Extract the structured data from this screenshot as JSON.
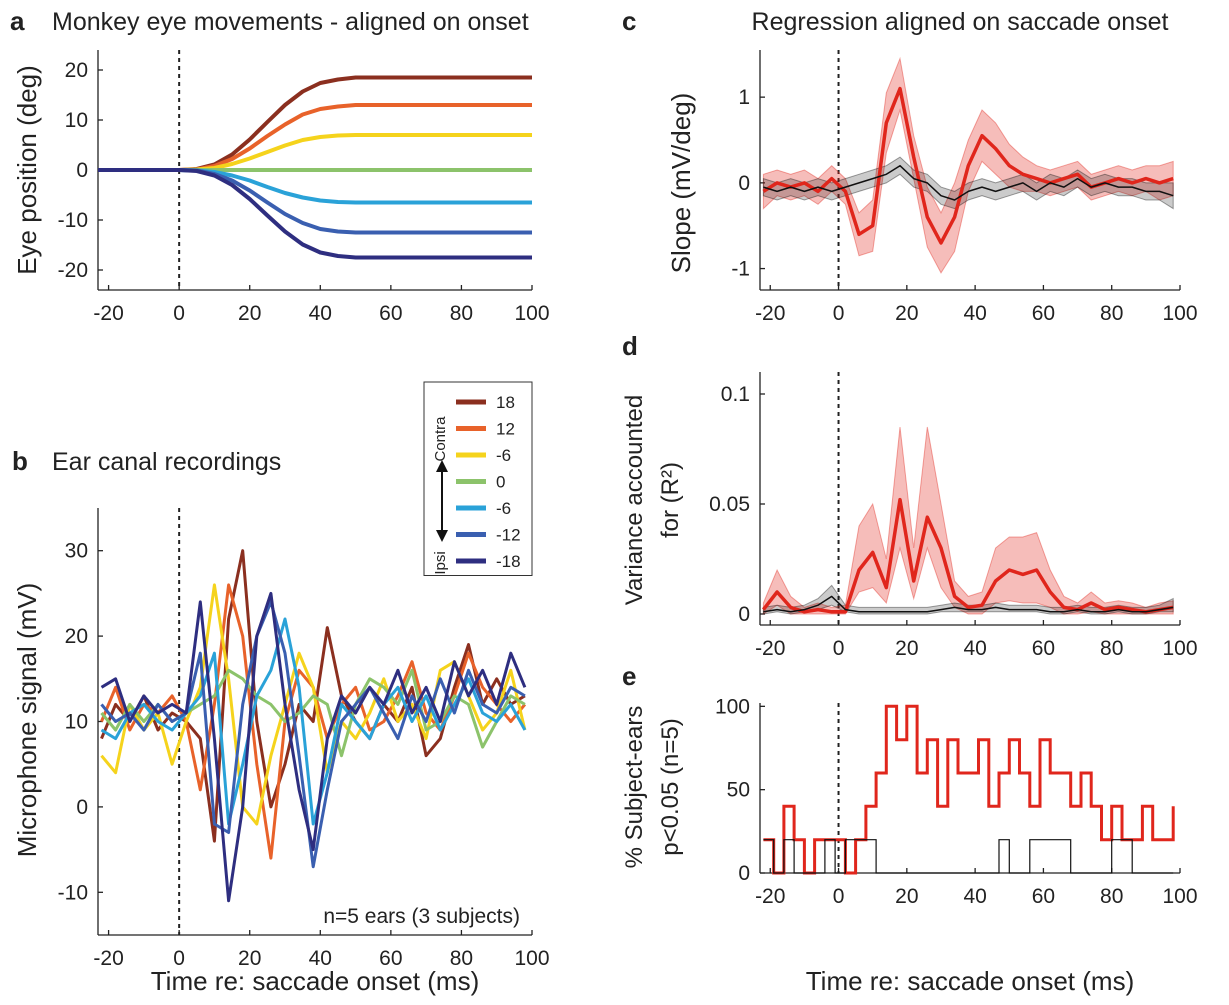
{
  "chart_data": [
    {
      "type": "line",
      "panel": "a",
      "title": "Monkey eye movements - aligned on onset",
      "ylabel": "Eye position (deg)",
      "x": [
        -23,
        0,
        5,
        10,
        15,
        20,
        25,
        30,
        35,
        40,
        45,
        50,
        55,
        60,
        80,
        100
      ],
      "series": [
        {
          "color": "#8b2f1f",
          "values": [
            0,
            0,
            0.2,
            1.1,
            3.1,
            6.1,
            9.6,
            13,
            15.7,
            17.4,
            18.1,
            18.5,
            18.5,
            18.5,
            18.5,
            18.5
          ]
        },
        {
          "color": "#e8622a",
          "values": [
            0,
            0,
            0.1,
            0.8,
            2.2,
            4.3,
            6.8,
            9.1,
            11.1,
            12.2,
            12.7,
            13,
            13,
            13,
            13,
            13
          ]
        },
        {
          "color": "#f5d31c",
          "values": [
            0,
            0,
            0.1,
            0.4,
            1.2,
            2.3,
            3.6,
            4.9,
            6,
            6.6,
            6.9,
            7,
            7,
            7,
            7,
            7
          ]
        },
        {
          "color": "#8cc36b",
          "values": [
            0,
            0,
            0,
            0,
            0,
            0,
            0,
            0,
            0,
            0,
            0,
            0,
            0,
            0,
            0,
            0
          ]
        },
        {
          "color": "#2aa2d8",
          "values": [
            0,
            0,
            -0.1,
            -0.4,
            -1.1,
            -2.1,
            -3.4,
            -4.6,
            -5.5,
            -6.1,
            -6.4,
            -6.5,
            -6.5,
            -6.5,
            -6.5,
            -6.5
          ]
        },
        {
          "color": "#3a5fb0",
          "values": [
            0,
            0,
            -0.1,
            -0.8,
            -2.1,
            -4.1,
            -6.5,
            -8.8,
            -10.6,
            -11.8,
            -12.3,
            -12.5,
            -12.5,
            -12.5,
            -12.5,
            -12.5
          ]
        },
        {
          "color": "#2e2e80",
          "values": [
            0,
            0,
            -0.2,
            -1.1,
            -3,
            -5.8,
            -9.1,
            -12.3,
            -14.9,
            -16.5,
            -17.2,
            -17.5,
            -17.5,
            -17.5,
            -17.5,
            -17.5
          ]
        }
      ],
      "xlim": [
        -23,
        100
      ],
      "xticks": [
        -20,
        0,
        20,
        40,
        60,
        80,
        100
      ],
      "ylim": [
        -24,
        24
      ],
      "yticks": [
        -20,
        -10,
        0,
        10,
        20
      ],
      "vline": 0
    },
    {
      "type": "line",
      "panel": "b",
      "title": "Ear canal recordings",
      "ylabel": "Microphone signal (mV)",
      "xlabel": "Time re: saccade onset (ms)",
      "annotation": "n=5 ears (3 subjects)",
      "legend": "upper right",
      "legend_directions": [
        "Contra",
        "Ipsi"
      ],
      "x": [
        -22,
        -18,
        -14,
        -10,
        -6,
        -2,
        2,
        6,
        10,
        14,
        18,
        22,
        26,
        30,
        34,
        38,
        42,
        46,
        50,
        54,
        58,
        62,
        66,
        70,
        74,
        78,
        82,
        86,
        90,
        94,
        98
      ],
      "series": [
        {
          "name": "18",
          "color": "#8b2f1f",
          "values": [
            8,
            12,
            10,
            13,
            9,
            11,
            10,
            8,
            -4,
            22,
            30,
            10,
            0,
            5,
            12,
            10,
            21,
            13,
            10,
            8,
            12,
            10,
            14,
            6,
            8,
            14,
            19,
            12,
            15,
            12,
            13
          ]
        },
        {
          "name": "12",
          "color": "#e8622a",
          "values": [
            10,
            14,
            9,
            12,
            11,
            13,
            10,
            2,
            12,
            26,
            20,
            5,
            -6,
            10,
            16,
            14,
            8,
            12,
            14,
            9,
            10,
            13,
            17,
            11,
            9,
            13,
            18,
            14,
            12,
            10,
            12
          ]
        },
        {
          "name": "-6",
          "color": "#f5d31c",
          "values": [
            6,
            4,
            12,
            9,
            11,
            5,
            10,
            14,
            26,
            15,
            0,
            -2,
            6,
            12,
            18,
            14,
            4,
            10,
            8,
            11,
            15,
            10,
            12,
            8,
            16,
            17,
            13,
            9,
            11,
            16,
            9
          ]
        },
        {
          "name": "0",
          "color": "#8cc36b",
          "values": [
            11,
            9,
            12,
            10,
            12,
            10,
            11,
            12,
            13,
            16,
            15,
            13,
            12,
            10,
            11,
            13,
            12,
            6,
            12,
            15,
            14,
            12,
            16,
            9,
            10,
            13,
            12,
            7,
            10,
            13,
            12
          ]
        },
        {
          "name": "-6",
          "color": "#2aa2d8",
          "values": [
            9,
            8,
            11,
            12,
            10,
            9,
            11,
            13,
            18,
            -2,
            5,
            13,
            16,
            22,
            14,
            -2,
            4,
            12,
            10,
            8,
            12,
            14,
            10,
            13,
            9,
            12,
            15,
            11,
            10,
            12,
            9
          ]
        },
        {
          "name": "-12",
          "color": "#3a5fb0",
          "values": [
            12,
            10,
            11,
            9,
            12,
            10,
            11,
            18,
            -2,
            -3,
            12,
            20,
            24,
            18,
            6,
            -7,
            2,
            10,
            12,
            14,
            11,
            8,
            13,
            10,
            15,
            11,
            16,
            12,
            11,
            14,
            13
          ]
        },
        {
          "name": "-18",
          "color": "#2e2e80",
          "values": [
            14,
            15,
            10,
            13,
            11,
            12,
            11,
            24,
            8,
            -11,
            0,
            20,
            25,
            12,
            2,
            -5,
            8,
            13,
            11,
            14,
            12,
            16,
            11,
            14,
            10,
            17,
            13,
            16,
            12,
            18,
            14
          ]
        }
      ],
      "xlim": [
        -23,
        100
      ],
      "xticks": [
        -20,
        0,
        20,
        40,
        60,
        80,
        100
      ],
      "ylim": [
        -15,
        35
      ],
      "yticks": [
        -10,
        0,
        10,
        20,
        30
      ],
      "vline": 0
    },
    {
      "type": "line",
      "panel": "c",
      "title": "Regression aligned on saccade onset",
      "ylabel": "Slope (mV/deg)",
      "x": [
        -22,
        -18,
        -14,
        -10,
        -6,
        -2,
        2,
        6,
        10,
        14,
        18,
        22,
        26,
        30,
        34,
        38,
        42,
        46,
        50,
        54,
        58,
        62,
        66,
        70,
        74,
        78,
        82,
        86,
        90,
        94,
        98
      ],
      "series": [
        {
          "color": "#e0261c",
          "values": [
            -0.1,
            0,
            -0.05,
            0,
            -0.1,
            0.05,
            -0.1,
            -0.6,
            -0.5,
            0.7,
            1.1,
            0.3,
            -0.4,
            -0.7,
            -0.4,
            0.2,
            0.55,
            0.4,
            0.2,
            0.1,
            0.05,
            0,
            0.05,
            0.1,
            -0.05,
            0,
            0.05,
            0,
            0.05,
            0,
            0.05
          ],
          "lower": [
            -0.3,
            -0.15,
            -0.2,
            -0.15,
            -0.25,
            -0.1,
            -0.25,
            -0.85,
            -0.8,
            0.35,
            0.85,
            0.05,
            -0.75,
            -1.05,
            -0.8,
            -0.1,
            0.25,
            0.1,
            -0.05,
            -0.1,
            -0.1,
            -0.15,
            -0.1,
            -0.05,
            -0.2,
            -0.15,
            -0.1,
            -0.15,
            -0.1,
            -0.2,
            -0.15
          ],
          "upper": [
            0.1,
            0.15,
            0.1,
            0.15,
            0.05,
            0.2,
            0.05,
            -0.35,
            -0.2,
            1.05,
            1.45,
            0.55,
            -0.05,
            -0.35,
            0,
            0.5,
            0.85,
            0.7,
            0.45,
            0.3,
            0.2,
            0.15,
            0.2,
            0.25,
            0.1,
            0.15,
            0.2,
            0.15,
            0.2,
            0.2,
            0.25
          ]
        },
        {
          "color": "#111111",
          "values": [
            -0.05,
            -0.1,
            -0.05,
            -0.1,
            -0.05,
            -0.1,
            -0.05,
            0,
            0.05,
            0.1,
            0.2,
            0.05,
            0,
            -0.15,
            -0.2,
            -0.1,
            -0.05,
            -0.1,
            -0.05,
            0,
            -0.1,
            0,
            -0.05,
            0.05,
            -0.05,
            0,
            -0.05,
            -0.05,
            -0.1,
            -0.1,
            -0.15
          ],
          "lower": [
            -0.15,
            -0.2,
            -0.15,
            -0.2,
            -0.15,
            -0.2,
            -0.15,
            -0.1,
            -0.05,
            0,
            0.1,
            -0.05,
            -0.1,
            -0.25,
            -0.3,
            -0.2,
            -0.15,
            -0.2,
            -0.15,
            -0.1,
            -0.2,
            -0.1,
            -0.15,
            -0.05,
            -0.15,
            -0.1,
            -0.15,
            -0.15,
            -0.2,
            -0.2,
            -0.3
          ],
          "upper": [
            0.05,
            0,
            0.05,
            0,
            0.05,
            0,
            0.05,
            0.1,
            0.15,
            0.2,
            0.3,
            0.15,
            0.1,
            -0.05,
            -0.1,
            0,
            0.05,
            0,
            0.05,
            0.1,
            0,
            0.1,
            0.05,
            0.15,
            0.05,
            0.1,
            0.05,
            0.05,
            0,
            0,
            0
          ]
        }
      ],
      "xlim": [
        -23,
        100
      ],
      "xticks": [
        -20,
        0,
        20,
        40,
        60,
        80,
        100
      ],
      "ylim": [
        -1.25,
        1.55
      ],
      "yticks": [
        -1,
        0,
        1
      ],
      "vline": 0
    },
    {
      "type": "line",
      "panel": "d",
      "ylabel": [
        "Variance accounted",
        "for (R²)"
      ],
      "x": [
        -22,
        -18,
        -14,
        -10,
        -6,
        -2,
        2,
        6,
        10,
        14,
        18,
        22,
        26,
        30,
        34,
        38,
        42,
        46,
        50,
        54,
        58,
        62,
        66,
        70,
        74,
        78,
        82,
        86,
        90,
        94,
        98
      ],
      "series": [
        {
          "color": "#e0261c",
          "values": [
            0.002,
            0.01,
            0.003,
            0.001,
            0.002,
            0.001,
            0.001,
            0.02,
            0.028,
            0.012,
            0.052,
            0.015,
            0.044,
            0.03,
            0.008,
            0.003,
            0.004,
            0.015,
            0.02,
            0.018,
            0.02,
            0.01,
            0.003,
            0.002,
            0.005,
            0.002,
            0.003,
            0.002,
            0.001,
            0.002,
            0.003
          ],
          "lower": [
            0,
            0.004,
            0,
            0,
            0,
            0,
            0,
            0.01,
            0.012,
            0.005,
            0.03,
            0.007,
            0.03,
            0.012,
            0.003,
            0,
            0,
            0.005,
            0.006,
            0.005,
            0.005,
            0.003,
            0,
            0,
            0.001,
            0,
            0,
            0,
            0,
            0,
            0
          ],
          "upper": [
            0.005,
            0.02,
            0.008,
            0.003,
            0.005,
            0.003,
            0.004,
            0.04,
            0.05,
            0.025,
            0.085,
            0.03,
            0.085,
            0.05,
            0.015,
            0.008,
            0.01,
            0.03,
            0.035,
            0.035,
            0.037,
            0.02,
            0.008,
            0.005,
            0.01,
            0.005,
            0.006,
            0.005,
            0.003,
            0.005,
            0.006
          ]
        },
        {
          "color": "#111111",
          "values": [
            0.001,
            0.002,
            0.001,
            0.002,
            0.004,
            0.008,
            0.002,
            0.001,
            0.001,
            0.001,
            0.001,
            0.001,
            0.001,
            0.002,
            0.003,
            0.002,
            0.002,
            0.003,
            0.002,
            0.002,
            0.002,
            0.001,
            0.001,
            0.002,
            0.001,
            0.001,
            0.002,
            0.001,
            0.001,
            0.002,
            0.003
          ],
          "lower": [
            0,
            0.001,
            0,
            0.001,
            0.002,
            0.004,
            0.001,
            0,
            0,
            0,
            0,
            0,
            0,
            0.001,
            0.001,
            0.001,
            0.001,
            0.001,
            0.001,
            0.001,
            0.001,
            0,
            0,
            0.001,
            0,
            0,
            0.001,
            0,
            0,
            0.001,
            0.001
          ],
          "upper": [
            0.003,
            0.004,
            0.003,
            0.004,
            0.007,
            0.013,
            0.004,
            0.003,
            0.003,
            0.003,
            0.003,
            0.003,
            0.003,
            0.004,
            0.005,
            0.004,
            0.004,
            0.005,
            0.004,
            0.004,
            0.004,
            0.003,
            0.003,
            0.004,
            0.003,
            0.003,
            0.004,
            0.003,
            0.003,
            0.004,
            0.007
          ]
        }
      ],
      "xlim": [
        -23,
        100
      ],
      "xticks": [
        -20,
        0,
        20,
        40,
        60,
        80,
        100
      ],
      "ylim": [
        -0.005,
        0.11
      ],
      "yticks": [
        0,
        0.05,
        0.1
      ],
      "vline": 0
    },
    {
      "type": "step",
      "panel": "e",
      "ylabel": [
        "% Subject-ears",
        "p<0.05 (n=5)"
      ],
      "xlabel": "Time re: saccade onset (ms)",
      "x": [
        -22,
        -19,
        -16,
        -13,
        -10,
        -7,
        -4,
        -1,
        2,
        5,
        8,
        11,
        14,
        17,
        20,
        23,
        26,
        29,
        32,
        35,
        38,
        41,
        44,
        47,
        50,
        53,
        56,
        59,
        62,
        65,
        68,
        71,
        74,
        77,
        80,
        83,
        86,
        89,
        92,
        95,
        98
      ],
      "series": [
        {
          "color": "#e0261c",
          "values": [
            20,
            0,
            40,
            20,
            0,
            20,
            20,
            20,
            0,
            20,
            40,
            60,
            100,
            80,
            100,
            60,
            80,
            40,
            80,
            60,
            60,
            80,
            40,
            60,
            80,
            60,
            40,
            80,
            60,
            60,
            40,
            60,
            40,
            20,
            40,
            20,
            20,
            40,
            20,
            20,
            40
          ]
        },
        {
          "color": "#111111",
          "values": [
            20,
            0,
            20,
            0,
            0,
            0,
            20,
            0,
            20,
            20,
            20,
            0,
            0,
            0,
            0,
            0,
            0,
            0,
            0,
            0,
            0,
            0,
            0,
            20,
            0,
            0,
            20,
            20,
            20,
            20,
            0,
            0,
            0,
            0,
            20,
            20,
            0,
            0,
            0,
            0,
            0
          ]
        }
      ],
      "xlim": [
        -23,
        100
      ],
      "xticks": [
        -20,
        0,
        20,
        40,
        60,
        80,
        100
      ],
      "ylim": [
        0,
        102
      ],
      "yticks": [
        0,
        50,
        100
      ],
      "vline": 0
    }
  ]
}
